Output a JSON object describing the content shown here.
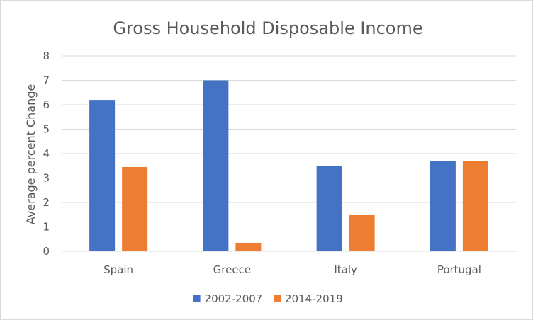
{
  "chart_data": {
    "type": "bar",
    "title": "Gross Household Disposable Income",
    "xlabel": "",
    "ylabel": "Average percent Change",
    "categories": [
      "Spain",
      "Greece",
      "Italy",
      "Portugal"
    ],
    "series": [
      {
        "name": "2002-2007",
        "values": [
          6.2,
          7.0,
          3.5,
          3.7
        ],
        "color": "#4472c4"
      },
      {
        "name": "2014-2019",
        "values": [
          3.45,
          0.35,
          1.5,
          3.7
        ],
        "color": "#ed7d31"
      }
    ],
    "ylim": [
      0,
      8
    ],
    "yticks": [
      0,
      1,
      2,
      3,
      4,
      5,
      6,
      7,
      8
    ],
    "grid": true,
    "legend_position": "bottom",
    "colors": {
      "grid": "#d9d9d9",
      "text": "#595959"
    }
  }
}
